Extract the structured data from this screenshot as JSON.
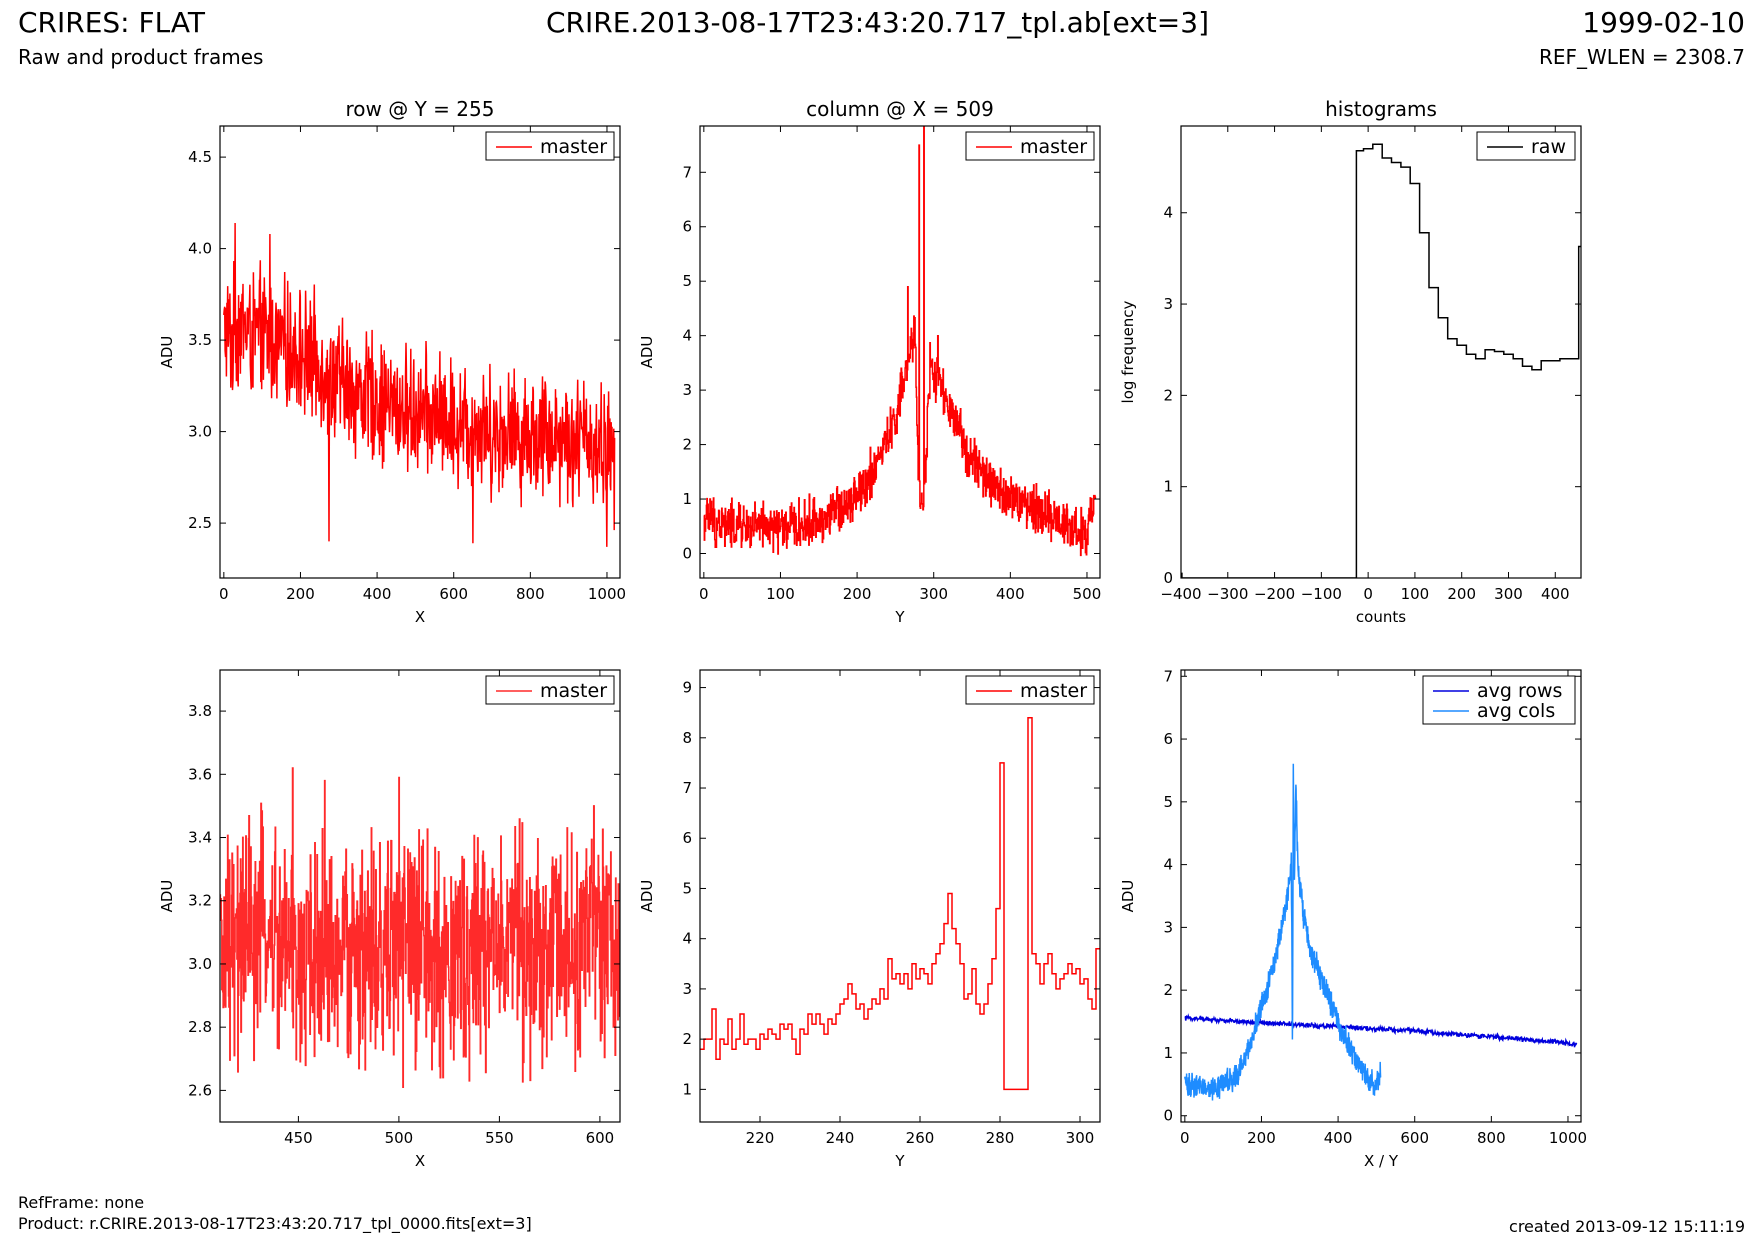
{
  "header": {
    "title": "CRIRES: FLAT",
    "subtitle": "Raw and product frames",
    "file": "CRIRE.2013-08-17T23:43:20.717_tpl.ab[ext=3]",
    "date": "1999-02-10",
    "ref_wlen": "REF_WLEN = 2308.7"
  },
  "footer": {
    "ref_frame": "RefFrame: none",
    "product": "Product: r.CRIRE.2013-08-17T23:43:20.717_tpl_0000.fits[ext=3]",
    "created": "created 2013-09-12 15:11:19"
  },
  "colors": {
    "master": "#ff0000",
    "master_zoom": "#ff2a2a",
    "raw": "#000000",
    "avg_rows": "#0000dd",
    "avg_cols": "#1e8cff"
  },
  "chart_data": [
    {
      "id": "row",
      "type": "line",
      "title": "row @ Y = 255",
      "xlabel": "X",
      "ylabel": "ADU",
      "xlim": [
        -10,
        1034
      ],
      "ylim": [
        2.2,
        4.67
      ],
      "xticks": [
        0,
        200,
        400,
        600,
        800,
        1000
      ],
      "yticks": [
        2.5,
        3.0,
        3.5,
        4.0,
        4.5
      ],
      "ytick_labels": [
        "2.5",
        "3.0",
        "3.5",
        "4.0",
        "4.5"
      ],
      "legend": "top-right",
      "series": [
        {
          "name": "master",
          "color": "#ff0000",
          "step": false,
          "x": [
            0,
            20,
            40,
            60,
            80,
            100,
            120,
            140,
            160,
            180,
            200,
            220,
            240,
            260,
            280,
            300,
            320,
            340,
            360,
            380,
            400,
            420,
            440,
            460,
            480,
            500,
            520,
            540,
            560,
            580,
            600,
            620,
            640,
            660,
            680,
            700,
            720,
            740,
            760,
            780,
            800,
            820,
            840,
            860,
            880,
            900,
            920,
            940,
            960,
            980,
            1000,
            1020
          ],
          "y": [
            3.55,
            3.5,
            3.6,
            3.56,
            3.52,
            3.54,
            3.5,
            3.49,
            3.47,
            3.45,
            3.44,
            3.4,
            3.38,
            3.35,
            3.3,
            3.28,
            3.25,
            3.23,
            3.2,
            3.2,
            3.18,
            3.15,
            3.14,
            3.12,
            3.1,
            3.12,
            3.1,
            3.08,
            3.08,
            3.06,
            3.05,
            3.05,
            3.04,
            3.02,
            3.03,
            3.0,
            3.0,
            3.0,
            3.0,
            2.98,
            2.98,
            2.98,
            3.0,
            2.98,
            2.97,
            2.96,
            2.95,
            2.96,
            2.94,
            2.92,
            2.9,
            2.85
          ],
          "noise": 0.42,
          "spikes": [
            {
              "x": 30,
              "y": 4.14
            },
            {
              "x": 120,
              "y": 4.08
            },
            {
              "x": 275,
              "y": 2.4
            },
            {
              "x": 650,
              "y": 2.39
            },
            {
              "x": 1000,
              "y": 2.37
            }
          ]
        }
      ]
    },
    {
      "id": "column",
      "type": "line",
      "title": "column @ X = 509",
      "xlabel": "Y",
      "ylabel": "ADU",
      "xlim": [
        -5,
        517
      ],
      "ylim": [
        -0.45,
        7.85
      ],
      "xticks": [
        0,
        100,
        200,
        300,
        400,
        500
      ],
      "yticks": [
        0,
        1,
        2,
        3,
        4,
        5,
        6,
        7
      ],
      "legend": "top-right",
      "series": [
        {
          "name": "master",
          "color": "#ff0000",
          "step": true,
          "x": [
            0,
            40,
            80,
            120,
            160,
            200,
            220,
            240,
            250,
            260,
            268,
            275,
            281,
            287,
            295,
            305,
            320,
            340,
            360,
            380,
            400,
            420,
            440,
            460,
            480,
            500,
            511
          ],
          "y": [
            0.6,
            0.5,
            0.45,
            0.5,
            0.65,
            1.1,
            1.5,
            2.1,
            2.5,
            3.1,
            3.5,
            4.2,
            1.0,
            1.0,
            3.4,
            3.2,
            2.6,
            2.0,
            1.5,
            1.2,
            1.0,
            0.9,
            0.8,
            0.6,
            0.5,
            0.35,
            1.0
          ],
          "noise": 0.55,
          "spikes": [
            {
              "x": 8,
              "y": 1.0
            },
            {
              "x": 266,
              "y": 4.9
            },
            {
              "x": 281,
              "y": 7.5
            },
            {
              "x": 287,
              "y": 7.85
            },
            {
              "x": 305,
              "y": 4.0
            },
            {
              "x": 511,
              "y": 1.0
            }
          ]
        }
      ]
    },
    {
      "id": "histograms",
      "type": "line",
      "title": "histograms",
      "xlabel": "counts",
      "ylabel": "log frequency",
      "xlim": [
        -400,
        455
      ],
      "ylim": [
        0,
        4.95
      ],
      "xticks": [
        -400,
        -300,
        -200,
        -100,
        0,
        100,
        200,
        300,
        400
      ],
      "xtick_labels": [
        "−400",
        "−300",
        "−200",
        "−100",
        "0",
        "100",
        "200",
        "300",
        "400"
      ],
      "yticks": [
        0,
        1,
        2,
        3,
        4
      ],
      "legend": "top-right",
      "series": [
        {
          "name": "raw",
          "color": "#000000",
          "step": true,
          "x": [
            -400,
            -398,
            -25,
            -25,
            -10,
            10,
            30,
            50,
            70,
            90,
            110,
            130,
            150,
            170,
            190,
            210,
            230,
            250,
            270,
            290,
            310,
            330,
            350,
            370,
            390,
            410,
            430,
            450,
            455
          ],
          "y": [
            0.05,
            0,
            0,
            4.68,
            4.7,
            4.75,
            4.6,
            4.55,
            4.5,
            4.32,
            3.78,
            3.18,
            2.85,
            2.62,
            2.55,
            2.45,
            2.4,
            2.5,
            2.48,
            2.45,
            2.4,
            2.32,
            2.28,
            2.38,
            2.38,
            2.4,
            2.4,
            3.63,
            3.63
          ]
        }
      ]
    },
    {
      "id": "row-zoom",
      "type": "line",
      "title": "",
      "xlabel": "X",
      "ylabel": "ADU",
      "xlim": [
        411,
        610
      ],
      "ylim": [
        2.5,
        3.93
      ],
      "xticks": [
        450,
        500,
        550,
        600
      ],
      "yticks": [
        2.6,
        2.8,
        3.0,
        3.2,
        3.4,
        3.6,
        3.8
      ],
      "ytick_labels": [
        "2.6",
        "2.8",
        "3.0",
        "3.2",
        "3.4",
        "3.6",
        "3.8"
      ],
      "legend": "top-right",
      "series": [
        {
          "name": "master",
          "color": "#ff2a2a",
          "step": true,
          "x": [
            411,
            420,
            430,
            440,
            450,
            460,
            470,
            480,
            490,
            500,
            510,
            520,
            530,
            540,
            550,
            560,
            570,
            580,
            590,
            600,
            610
          ],
          "y": [
            3.0,
            3.05,
            3.1,
            3.05,
            3.0,
            3.05,
            3.0,
            3.05,
            3.0,
            3.1,
            3.05,
            3.0,
            3.05,
            3.0,
            3.1,
            3.05,
            3.0,
            3.1,
            3.05,
            3.1,
            3.05
          ],
          "noise": 0.45,
          "spikes": [
            {
              "x": 418,
              "y": 2.71
            },
            {
              "x": 447,
              "y": 3.62
            },
            {
              "x": 463,
              "y": 3.58
            },
            {
              "x": 500,
              "y": 3.59
            },
            {
              "x": 502,
              "y": 2.61
            },
            {
              "x": 535,
              "y": 2.63
            },
            {
              "x": 597,
              "y": 3.5
            }
          ]
        }
      ]
    },
    {
      "id": "column-zoom",
      "type": "line",
      "title": "",
      "xlabel": "Y",
      "ylabel": "ADU",
      "xlim": [
        205,
        305
      ],
      "ylim": [
        0.35,
        9.35
      ],
      "xticks": [
        220,
        240,
        260,
        280,
        300
      ],
      "yticks": [
        1,
        2,
        3,
        4,
        5,
        6,
        7,
        8,
        9
      ],
      "legend": "top-right",
      "series": [
        {
          "name": "master",
          "color": "#ff0000",
          "step": true,
          "x": [
            205,
            206,
            207,
            208,
            209,
            210,
            211,
            212,
            213,
            214,
            215,
            216,
            217,
            218,
            219,
            220,
            221,
            222,
            223,
            224,
            225,
            226,
            227,
            228,
            229,
            230,
            231,
            232,
            233,
            234,
            235,
            236,
            237,
            238,
            239,
            240,
            241,
            242,
            243,
            244,
            245,
            246,
            247,
            248,
            249,
            250,
            251,
            252,
            253,
            254,
            255,
            256,
            257,
            258,
            259,
            260,
            261,
            262,
            263,
            264,
            265,
            266,
            267,
            268,
            269,
            270,
            271,
            272,
            273,
            274,
            275,
            276,
            277,
            278,
            279,
            280,
            281,
            282,
            283,
            284,
            285,
            286,
            287,
            288,
            289,
            290,
            291,
            292,
            293,
            294,
            295,
            296,
            297,
            298,
            299,
            300,
            301,
            302,
            303,
            304,
            305
          ],
          "y": [
            1.8,
            2.0,
            2.0,
            2.6,
            1.6,
            2.0,
            1.9,
            2.4,
            1.8,
            2.0,
            2.5,
            1.9,
            2.0,
            2.0,
            1.8,
            2.1,
            2.0,
            2.2,
            2.1,
            2.0,
            2.3,
            2.2,
            2.3,
            2.0,
            1.7,
            2.2,
            2.1,
            2.5,
            2.3,
            2.5,
            2.3,
            2.1,
            2.4,
            2.3,
            2.5,
            2.7,
            2.8,
            3.1,
            2.9,
            2.6,
            2.7,
            2.4,
            2.6,
            2.8,
            2.7,
            3.0,
            2.8,
            3.6,
            3.2,
            3.3,
            3.1,
            3.3,
            3.0,
            3.5,
            3.2,
            3.4,
            3.3,
            3.1,
            3.5,
            3.7,
            3.9,
            4.3,
            4.9,
            4.2,
            3.9,
            3.5,
            2.8,
            2.9,
            3.4,
            2.7,
            2.5,
            2.7,
            3.1,
            3.6,
            4.6,
            7.5,
            1.0,
            1.0,
            1.0,
            1.0,
            1.0,
            1.0,
            8.4,
            3.7,
            3.5,
            3.1,
            3.5,
            3.7,
            3.3,
            3.0,
            3.2,
            3.3,
            3.5,
            3.3,
            3.4,
            3.1,
            3.2,
            2.8,
            2.6,
            3.8,
            3.8
          ]
        }
      ]
    },
    {
      "id": "averages",
      "type": "line",
      "title": "",
      "xlabel": "X / Y",
      "ylabel": "ADU",
      "xlim": [
        -10,
        1034
      ],
      "ylim": [
        -0.1,
        7.1
      ],
      "xticks": [
        0,
        200,
        400,
        600,
        800,
        1000
      ],
      "yticks": [
        0,
        1,
        2,
        3,
        4,
        5,
        6,
        7
      ],
      "legend": "top-right",
      "series": [
        {
          "name": "avg rows",
          "color": "#0000dd",
          "step": false,
          "x": [
            0,
            100,
            200,
            300,
            400,
            500,
            600,
            700,
            800,
            900,
            1000,
            1023
          ],
          "y": [
            1.56,
            1.52,
            1.48,
            1.45,
            1.42,
            1.38,
            1.35,
            1.3,
            1.26,
            1.21,
            1.16,
            1.13
          ],
          "noise": 0.05
        },
        {
          "name": "avg cols",
          "color": "#1e8cff",
          "step": false,
          "x": [
            0,
            20,
            50,
            80,
            100,
            120,
            140,
            160,
            180,
            200,
            220,
            240,
            255,
            265,
            272,
            278,
            281,
            283,
            286,
            290,
            295,
            300,
            310,
            330,
            350,
            380,
            400,
            420,
            440,
            460,
            480,
            500,
            511
          ],
          "y": [
            0.5,
            0.47,
            0.43,
            0.44,
            0.5,
            0.56,
            0.68,
            0.95,
            1.3,
            1.8,
            2.1,
            2.6,
            3.1,
            3.4,
            3.7,
            4.1,
            1.0,
            5.6,
            3.8,
            5.2,
            4.0,
            3.7,
            3.2,
            2.6,
            2.3,
            1.8,
            1.5,
            1.2,
            0.95,
            0.75,
            0.55,
            0.5,
            0.7
          ],
          "noise": 0.25
        }
      ]
    }
  ]
}
